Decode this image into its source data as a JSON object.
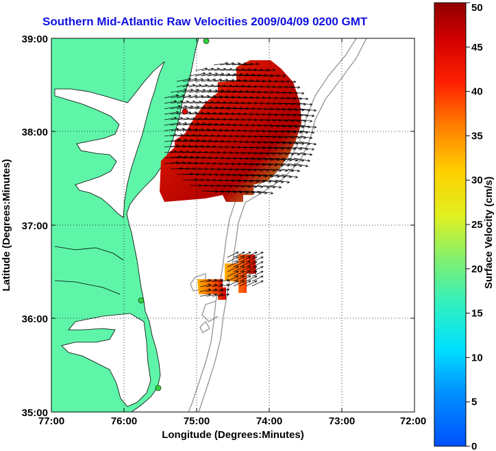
{
  "title": "Southern Mid-Atlantic Raw Velocities 2009/04/09 0200 GMT",
  "xaxis": {
    "label": "Longitude (Degrees:Minutes)",
    "ticks": [
      "77:00",
      "76:00",
      "75:00",
      "74:00",
      "73:00",
      "72:00"
    ]
  },
  "yaxis": {
    "label": "Latitude (Degrees:Minutes)",
    "ticks": [
      "39:00",
      "38:00",
      "37:00",
      "36:00",
      "35:00"
    ]
  },
  "colorbar": {
    "label": "Surface Velocity (cm/s)",
    "ticks": [
      "50",
      "45",
      "40",
      "35",
      "30",
      "25",
      "20",
      "15",
      "10",
      "5",
      "0"
    ],
    "min": 0,
    "max": 50
  },
  "colors": {
    "land": "#5ef5a8",
    "title": "#1010e0",
    "bathymetry": "#999999"
  }
}
